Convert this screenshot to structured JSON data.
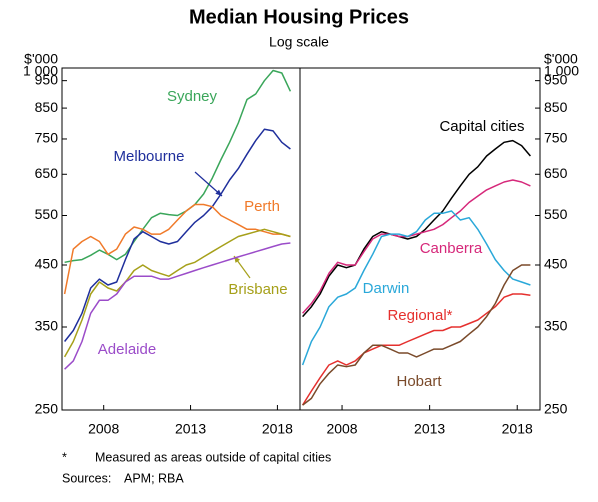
{
  "title": "Median Housing Prices",
  "subtitle": "Log scale",
  "footnote_marker": "*",
  "footnote": "Measured as areas outside of capital cities",
  "sources_label": "Sources:",
  "sources": "APM; RBA",
  "chart_data": [
    {
      "type": "line",
      "ylabel": "$'000",
      "y_axis_side": "left",
      "log_scale": true,
      "xlim": [
        2005.6,
        2019.3
      ],
      "xticks": [
        2008,
        2013,
        2018
      ],
      "ylim": [
        250,
        1000
      ],
      "yticks": [
        250,
        350,
        450,
        550,
        650,
        750,
        850,
        950,
        {
          "value": 1000,
          "label": "1 000"
        }
      ],
      "x": [
        2005.75,
        2006.25,
        2006.75,
        2007.25,
        2007.75,
        2008.25,
        2008.75,
        2009.25,
        2009.75,
        2010.25,
        2010.75,
        2011.25,
        2011.75,
        2012.25,
        2012.75,
        2013.25,
        2013.75,
        2014.25,
        2014.75,
        2015.25,
        2015.75,
        2016.25,
        2016.75,
        2017.25,
        2017.75,
        2018.25,
        2018.75
      ],
      "series": [
        {
          "name": "Sydney",
          "color": "#3aa65a",
          "values": [
            455,
            458,
            460,
            468,
            478,
            470,
            460,
            470,
            495,
            520,
            545,
            555,
            552,
            550,
            560,
            575,
            600,
            640,
            690,
            740,
            800,
            880,
            900,
            950,
            990,
            980,
            910
          ]
        },
        {
          "name": "Melbourne",
          "color": "#1f2f9c",
          "values": [
            330,
            345,
            370,
            410,
            425,
            415,
            420,
            460,
            500,
            515,
            505,
            495,
            490,
            495,
            515,
            535,
            550,
            570,
            600,
            635,
            665,
            705,
            745,
            780,
            775,
            740,
            720
          ]
        },
        {
          "name": "Perth",
          "color": "#f07a2a",
          "values": [
            400,
            480,
            495,
            505,
            495,
            470,
            480,
            510,
            525,
            520,
            510,
            510,
            520,
            540,
            560,
            575,
            575,
            570,
            550,
            540,
            530,
            520,
            520,
            515,
            510,
            510,
            505
          ]
        },
        {
          "name": "Brisbane",
          "color": "#a6a01a",
          "values": [
            310,
            330,
            360,
            400,
            420,
            410,
            405,
            420,
            440,
            450,
            440,
            435,
            430,
            440,
            450,
            455,
            465,
            475,
            485,
            495,
            505,
            510,
            515,
            520,
            515,
            510,
            505
          ]
        },
        {
          "name": "Adelaide",
          "color": "#9b4cc9",
          "values": [
            295,
            305,
            330,
            370,
            390,
            390,
            400,
            420,
            430,
            430,
            430,
            425,
            425,
            430,
            435,
            440,
            445,
            450,
            455,
            460,
            465,
            470,
            475,
            480,
            485,
            490,
            492
          ]
        }
      ]
    },
    {
      "type": "line",
      "ylabel": "$'000",
      "y_axis_side": "right",
      "log_scale": true,
      "xlim": [
        2005.6,
        2019.3
      ],
      "xticks": [
        2008,
        2013,
        2018
      ],
      "ylim": [
        250,
        1000
      ],
      "yticks": [
        250,
        350,
        450,
        550,
        650,
        750,
        850,
        950,
        {
          "value": 1000,
          "label": "1 000"
        }
      ],
      "x": [
        2005.75,
        2006.25,
        2006.75,
        2007.25,
        2007.75,
        2008.25,
        2008.75,
        2009.25,
        2009.75,
        2010.25,
        2010.75,
        2011.25,
        2011.75,
        2012.25,
        2012.75,
        2013.25,
        2013.75,
        2014.25,
        2014.75,
        2015.25,
        2015.75,
        2016.25,
        2016.75,
        2017.25,
        2017.75,
        2018.25,
        2018.75
      ],
      "series": [
        {
          "name": "Capital cities",
          "color": "#000000",
          "values": [
            365,
            380,
            400,
            430,
            450,
            445,
            450,
            480,
            505,
            515,
            510,
            505,
            500,
            505,
            520,
            540,
            560,
            590,
            620,
            650,
            670,
            700,
            720,
            740,
            745,
            730,
            700
          ]
        },
        {
          "name": "Canberra",
          "color": "#d6287a",
          "values": [
            370,
            385,
            405,
            435,
            455,
            450,
            450,
            475,
            500,
            510,
            510,
            505,
            505,
            510,
            515,
            520,
            530,
            545,
            560,
            580,
            595,
            610,
            620,
            630,
            635,
            630,
            620
          ]
        },
        {
          "name": "Darwin",
          "color": "#2aa8d9",
          "values": [
            300,
            330,
            350,
            380,
            395,
            400,
            410,
            440,
            470,
            505,
            510,
            510,
            505,
            515,
            540,
            555,
            555,
            560,
            540,
            545,
            520,
            490,
            460,
            440,
            425,
            420,
            415
          ]
        },
        {
          "name": "Regional*",
          "color": "#e5302e",
          "values": [
            255,
            270,
            285,
            300,
            305,
            300,
            305,
            315,
            320,
            325,
            325,
            325,
            330,
            335,
            340,
            345,
            345,
            350,
            350,
            355,
            360,
            370,
            380,
            395,
            400,
            400,
            398
          ]
        },
        {
          "name": "Hobart",
          "color": "#7a4a2a",
          "values": [
            255,
            262,
            278,
            290,
            300,
            298,
            300,
            315,
            325,
            325,
            320,
            315,
            315,
            310,
            315,
            320,
            320,
            325,
            330,
            340,
            350,
            365,
            385,
            415,
            440,
            450,
            450
          ]
        }
      ]
    }
  ]
}
